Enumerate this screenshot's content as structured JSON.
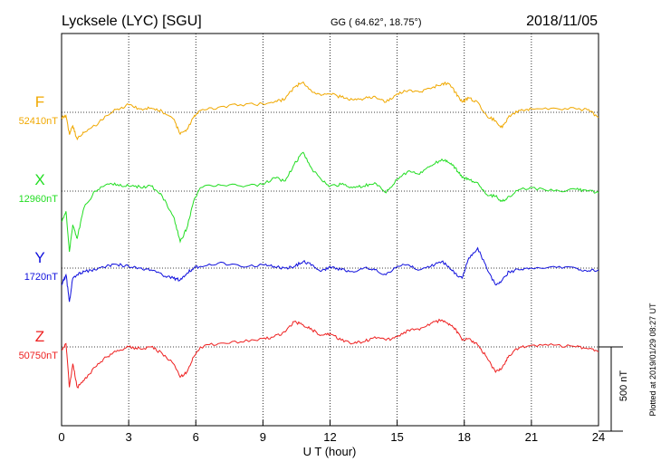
{
  "header": {
    "station": "Lycksele (LYC)  [SGU]",
    "coords": "GG ( 64.62°,  18.75°)",
    "date": "2018/11/05"
  },
  "plotted_note": "Plotted at 2019/01/29 08:27 UT",
  "scale_label": "500 nT",
  "colors": {
    "F": "#f0a800",
    "X": "#22dd22",
    "Y": "#1010dd",
    "Z": "#ee2020",
    "axis": "#000000"
  },
  "chart_data": {
    "type": "line",
    "xlabel": "U T (hour)",
    "xlim": [
      0,
      24
    ],
    "xticks": [
      0,
      3,
      6,
      9,
      12,
      15,
      18,
      21,
      24
    ],
    "scale_nT": 500,
    "series": [
      {
        "name": "F",
        "baseline_label": "52410nT",
        "baseline_nT": 52410,
        "x": [
          0,
          0.2,
          0.35,
          0.5,
          0.7,
          1,
          1.5,
          2,
          2.5,
          3,
          3.5,
          4,
          4.5,
          5,
          5.3,
          5.6,
          5.9,
          6.2,
          7,
          8,
          9,
          9.5,
          10,
          10.4,
          10.8,
          11.2,
          11.6,
          12,
          12.5,
          13,
          13.5,
          14,
          14.5,
          15,
          15.5,
          16,
          16.5,
          17,
          17.3,
          17.6,
          17.9,
          18.2,
          18.6,
          19,
          19.4,
          19.7,
          20,
          20.5,
          21,
          22,
          23,
          23.5,
          24
        ],
        "values": [
          -30,
          -20,
          -130,
          -80,
          -160,
          -120,
          -80,
          -20,
          20,
          45,
          20,
          25,
          5,
          -40,
          -130,
          -100,
          -30,
          10,
          30,
          45,
          50,
          60,
          80,
          150,
          180,
          120,
          100,
          110,
          90,
          75,
          80,
          95,
          60,
          110,
          130,
          120,
          140,
          170,
          170,
          120,
          60,
          85,
          60,
          -20,
          -50,
          -90,
          -20,
          10,
          20,
          25,
          20,
          15,
          -30
        ]
      },
      {
        "name": "X",
        "baseline_label": "12960nT",
        "baseline_nT": 12960,
        "x": [
          0,
          0.2,
          0.35,
          0.5,
          0.7,
          1,
          1.5,
          2,
          2.5,
          3,
          3.5,
          4,
          4.5,
          5,
          5.3,
          5.6,
          5.9,
          6.2,
          7,
          8,
          9,
          9.5,
          10,
          10.4,
          10.8,
          11.2,
          11.6,
          12,
          12.5,
          13,
          13.5,
          14,
          14.5,
          15,
          15.5,
          16,
          16.5,
          17,
          17.3,
          17.6,
          17.9,
          18.2,
          18.6,
          19,
          19.4,
          19.7,
          20,
          20.5,
          21,
          22,
          23,
          23.5,
          24
        ],
        "values": [
          -180,
          -120,
          -360,
          -200,
          -280,
          -100,
          0,
          40,
          40,
          30,
          25,
          30,
          -30,
          -150,
          -300,
          -220,
          -60,
          20,
          40,
          30,
          40,
          80,
          60,
          160,
          230,
          130,
          70,
          30,
          40,
          20,
          30,
          50,
          -10,
          70,
          120,
          100,
          150,
          190,
          170,
          140,
          80,
          70,
          50,
          -20,
          -30,
          -60,
          -30,
          10,
          20,
          0,
          10,
          0,
          -10
        ]
      },
      {
        "name": "Y",
        "baseline_label": "1720nT",
        "baseline_nT": 1720,
        "x": [
          0,
          0.2,
          0.35,
          0.5,
          0.7,
          1,
          1.5,
          2,
          2.5,
          3,
          3.5,
          4,
          4.5,
          5,
          5.3,
          5.6,
          5.9,
          6.2,
          7,
          8,
          9,
          9.5,
          10,
          10.4,
          10.8,
          11.2,
          11.6,
          12,
          12.5,
          13,
          13.5,
          14,
          14.5,
          15,
          15.5,
          16,
          16.5,
          17,
          17.3,
          17.6,
          17.9,
          18.2,
          18.6,
          19,
          19.4,
          19.7,
          20,
          20.5,
          21,
          22,
          23,
          23.5,
          24
        ],
        "values": [
          -100,
          -40,
          -200,
          -60,
          -40,
          -20,
          -10,
          10,
          20,
          10,
          0,
          -10,
          -40,
          -60,
          -70,
          -30,
          0,
          10,
          30,
          10,
          20,
          10,
          0,
          10,
          40,
          20,
          -20,
          10,
          -10,
          -20,
          0,
          -10,
          -40,
          10,
          20,
          -10,
          10,
          40,
          10,
          -30,
          -60,
          60,
          120,
          0,
          -100,
          -70,
          -20,
          -10,
          0,
          10,
          0,
          -20,
          -10
        ]
      },
      {
        "name": "Z",
        "baseline_label": "50750nT",
        "baseline_nT": 50750,
        "x": [
          0,
          0.2,
          0.35,
          0.5,
          0.7,
          1,
          1.5,
          2,
          2.5,
          3,
          3.5,
          4,
          4.5,
          5,
          5.3,
          5.6,
          5.9,
          6.2,
          7,
          8,
          9,
          9.5,
          10,
          10.4,
          10.8,
          11.2,
          11.6,
          12,
          12.5,
          13,
          13.5,
          14,
          14.5,
          15,
          15.5,
          16,
          16.5,
          17,
          17.3,
          17.6,
          17.9,
          18.2,
          18.6,
          19,
          19.4,
          19.7,
          20,
          20.5,
          21,
          22,
          23,
          23.5,
          24
        ],
        "values": [
          -20,
          20,
          -240,
          -100,
          -240,
          -200,
          -120,
          -60,
          -20,
          0,
          -10,
          0,
          -40,
          -100,
          -180,
          -150,
          -60,
          0,
          20,
          30,
          50,
          60,
          90,
          150,
          130,
          100,
          70,
          80,
          40,
          20,
          30,
          60,
          40,
          60,
          100,
          100,
          140,
          160,
          130,
          110,
          40,
          50,
          10,
          -60,
          -150,
          -120,
          -50,
          0,
          10,
          10,
          0,
          -10,
          -30
        ]
      }
    ]
  }
}
